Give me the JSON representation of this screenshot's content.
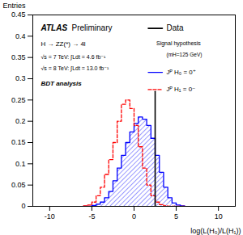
{
  "chart_data": {
    "type": "histogram",
    "x_label": "log(L(H₀)/L(H₁))",
    "y_label": "Entries",
    "bins": [
      -6,
      -5.5,
      -5,
      -4.5,
      -4,
      -3.5,
      -3,
      -2.5,
      -2,
      -1.5,
      -1,
      -0.5,
      0,
      0.5,
      1,
      1.5,
      2,
      2.5,
      3,
      3.5,
      4,
      4.5,
      5,
      5.5,
      6
    ],
    "series": [
      {
        "name": "Jᴾ H₀ = 0⁺",
        "color": "#0000ff",
        "line_style": "solid",
        "values": [
          0,
          0,
          0.002,
          0.005,
          0.01,
          0.02,
          0.035,
          0.06,
          0.09,
          0.12,
          0.15,
          0.175,
          0.195,
          0.21,
          0.205,
          0.19,
          0.16,
          0.12,
          0.08,
          0.045,
          0.02,
          0.008,
          0.003,
          0.001
        ]
      },
      {
        "name": "Jᴾ H₁ = 0⁻",
        "color": "#ff0000",
        "line_style": "dashed",
        "values": [
          0.001,
          0.003,
          0.01,
          0.025,
          0.045,
          0.075,
          0.11,
          0.15,
          0.2,
          0.24,
          0.25,
          0.23,
          0.19,
          0.14,
          0.09,
          0.05,
          0.025,
          0.01,
          0.004,
          0.001,
          0,
          0,
          0,
          0
        ]
      }
    ],
    "data": {
      "name": "Data",
      "x": 2.5,
      "y": [
        0,
        0.27
      ],
      "color": "#000000"
    },
    "annotations": [
      "ATLAS",
      "Preliminary",
      "H → ZZ(*) → 4l",
      "√s = 7 TeV: ∫Ldt = 4.6 fb⁻¹",
      "√s = 8 TeV: ∫Ldt = 13.0 fb⁻¹",
      "BDT analysis"
    ],
    "legend_title": "Signal hypothesis",
    "legend_subtitle": "(mH=125 GeV)",
    "legend": "top-right",
    "xlim": [
      -12,
      12
    ],
    "xticks": [
      -10,
      -5,
      0,
      5,
      10
    ],
    "ylim": [
      0,
      0.45
    ],
    "yticks": [
      0,
      0.05,
      0.1,
      0.15,
      0.2,
      0.25,
      0.3,
      0.35,
      0.4,
      0.45
    ],
    "grid": false
  }
}
